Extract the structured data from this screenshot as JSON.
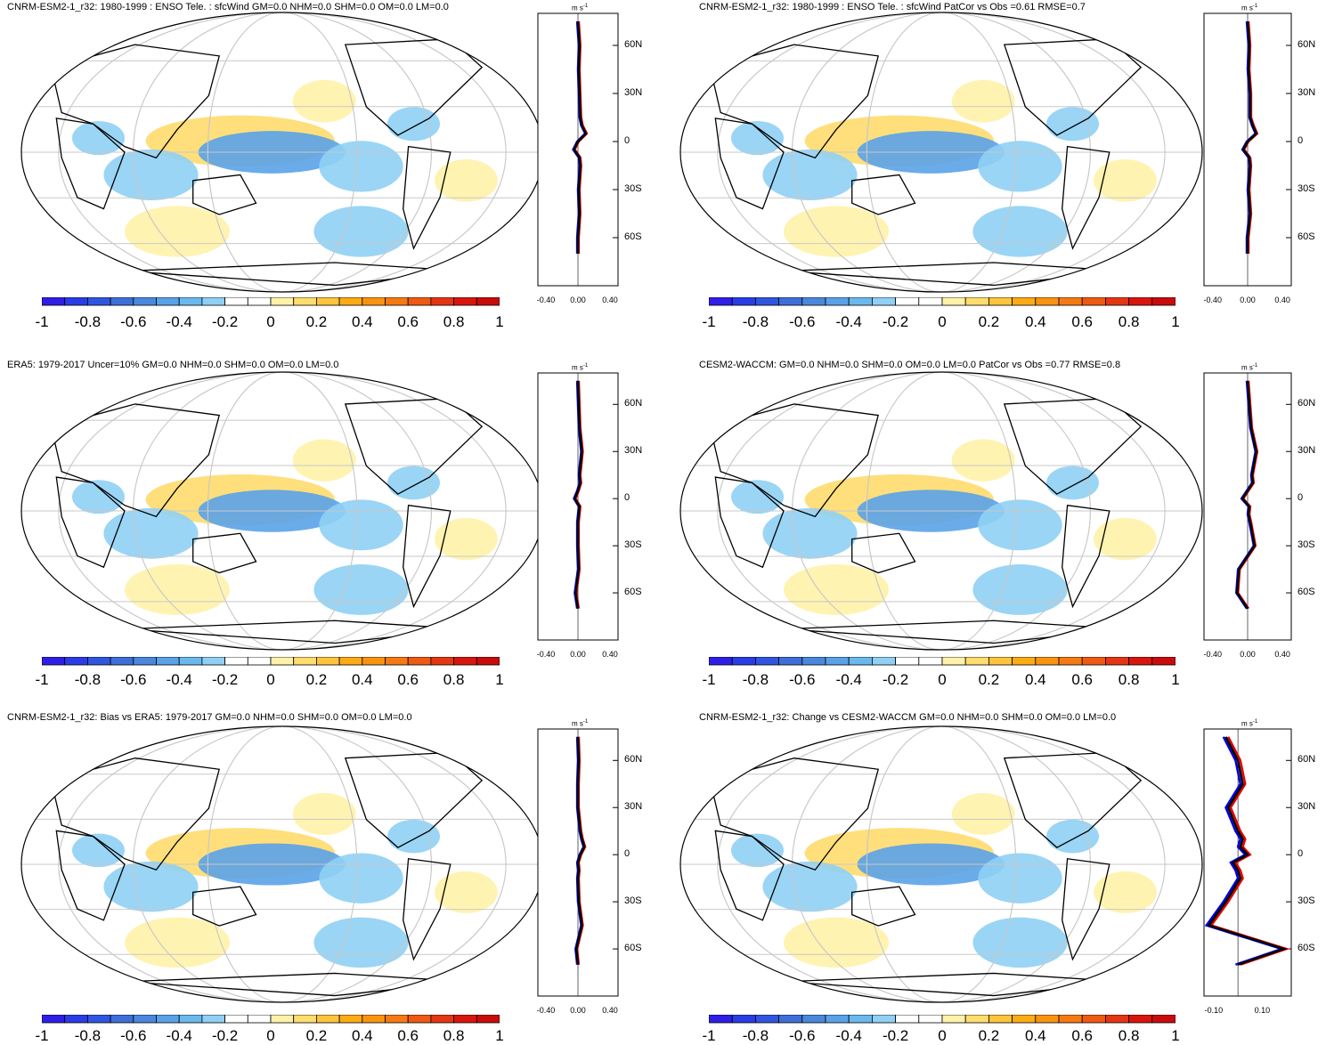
{
  "colorbar": {
    "colors": [
      "#2f1ee6",
      "#2a3ce6",
      "#3056e0",
      "#3e6fd8",
      "#4a88dd",
      "#5aa2e8",
      "#6ab9ee",
      "#8fd0f4",
      "#ffffff",
      "#ffffff",
      "#fff2a8",
      "#fedc6e",
      "#fdc43c",
      "#fcab15",
      "#f99411",
      "#f57a12",
      "#ef5a12",
      "#e43612",
      "#d8160e",
      "#c80c0c"
    ],
    "tick_labels": [
      "-1",
      "-0.8",
      "-0.6",
      "-0.4",
      "-0.2",
      "0",
      "0.2",
      "0.4",
      "0.6",
      "0.8",
      "1"
    ]
  },
  "zonal_axis_labels": [
    "60N",
    "30N",
    "0",
    "30S",
    "60S"
  ],
  "units_label": "m s",
  "units_exponent": "-1",
  "series_colors": {
    "model": "#e00000",
    "obs": "#0000e0",
    "mean": "#000000"
  },
  "chart_data": [
    {
      "type": "map",
      "title": "CNRM-ESM2-1_r32: 1980-1999 : ENSO Tele. : sfcWind GM=0.0 NHM=0.0 SHM=0.0 OM=0.0 LM=0.0",
      "zonal_xticks": [
        "-0.40",
        "0.00",
        "0.40"
      ],
      "zonal_xlim": [
        -0.5,
        0.5
      ],
      "latitudes": [
        75,
        60,
        45,
        30,
        15,
        10,
        5,
        0,
        -5,
        -10,
        -15,
        -30,
        -45,
        -60,
        -70
      ],
      "zonal_mean": [
        0.0,
        0.02,
        0.01,
        0.02,
        0.03,
        0.05,
        0.1,
        0.0,
        -0.05,
        0.02,
        0.03,
        0.01,
        0.02,
        0.0,
        0.0
      ]
    },
    {
      "type": "map",
      "title": "CNRM-ESM2-1_r32: 1980-1999 : ENSO Tele. : sfcWind PatCor vs Obs =0.61 RMSE=0.7",
      "zonal_xticks": [
        "-0.40",
        "0.00",
        "0.40"
      ],
      "zonal_xlim": [
        -0.5,
        0.5
      ],
      "latitudes": [
        75,
        60,
        45,
        30,
        15,
        10,
        5,
        0,
        -5,
        -10,
        -15,
        -30,
        -45,
        -60,
        -70
      ],
      "zonal_mean": [
        0.0,
        0.02,
        0.01,
        0.03,
        0.03,
        0.06,
        0.1,
        0.0,
        -0.05,
        0.02,
        0.03,
        0.01,
        0.03,
        0.0,
        0.0
      ]
    },
    {
      "type": "map",
      "title": "ERA5: 1979-2017 Uncer=10% GM=0.0 NHM=0.0 SHM=0.0 OM=0.0 LM=0.0",
      "zonal_xticks": [
        "-0.40",
        "0.00",
        "0.40"
      ],
      "zonal_xlim": [
        -0.5,
        0.5
      ],
      "latitudes": [
        75,
        60,
        45,
        30,
        15,
        10,
        5,
        0,
        -5,
        -10,
        -15,
        -30,
        -45,
        -60,
        -70
      ],
      "zonal_mean": [
        0.0,
        0.01,
        0.02,
        0.05,
        0.02,
        0.03,
        0.0,
        -0.04,
        0.02,
        0.01,
        0.0,
        0.0,
        0.01,
        -0.03,
        0.0
      ]
    },
    {
      "type": "map",
      "title": "CESM2-WACCM: GM=0.0 NHM=0.0 SHM=0.0 OM=0.0 LM=0.0 PatCor vs Obs =0.77 RMSE=0.8",
      "zonal_xticks": [
        "-0.40",
        "0.00",
        "0.40"
      ],
      "zonal_xlim": [
        -0.5,
        0.5
      ],
      "latitudes": [
        75,
        60,
        45,
        30,
        15,
        10,
        5,
        0,
        -5,
        -10,
        -15,
        -30,
        -45,
        -60,
        -70
      ],
      "zonal_mean": [
        0.0,
        0.02,
        0.04,
        0.1,
        0.05,
        0.06,
        0.0,
        -0.06,
        0.02,
        0.01,
        0.03,
        0.08,
        -0.1,
        -0.12,
        0.0
      ]
    },
    {
      "type": "map",
      "title": "CNRM-ESM2-1_r32: Bias vs ERA5: 1979-2017 GM=0.0 NHM=0.0 SHM=0.0 OM=0.0 LM=0.0",
      "zonal_xticks": [
        "-0.40",
        "0.00",
        "0.40"
      ],
      "zonal_xlim": [
        -0.5,
        0.5
      ],
      "latitudes": [
        75,
        60,
        45,
        30,
        15,
        10,
        5,
        0,
        -5,
        -10,
        -15,
        -30,
        -45,
        -60,
        -70
      ],
      "zonal_mean": [
        0.0,
        0.01,
        0.0,
        0.0,
        0.03,
        0.05,
        0.08,
        0.03,
        0.0,
        0.01,
        0.0,
        0.01,
        0.05,
        -0.02,
        0.0
      ]
    },
    {
      "type": "map",
      "title": "CNRM-ESM2-1_r32: Change vs CESM2-WACCM GM=0.0 NHM=0.0 SHM=0.0 OM=0.0 LM=0.0",
      "zonal_xticks": [
        "-0.10",
        "0.10"
      ],
      "zonal_xlim": [
        -0.14,
        0.22
      ],
      "latitudes": [
        75,
        60,
        45,
        30,
        15,
        10,
        5,
        0,
        -5,
        -10,
        -15,
        -30,
        -45,
        -60,
        -70
      ],
      "zonal_mean": [
        -0.05,
        0.0,
        0.02,
        -0.04,
        0.0,
        0.02,
        0.01,
        0.04,
        -0.02,
        0.0,
        0.01,
        -0.05,
        -0.12,
        0.19,
        0.0
      ]
    }
  ]
}
